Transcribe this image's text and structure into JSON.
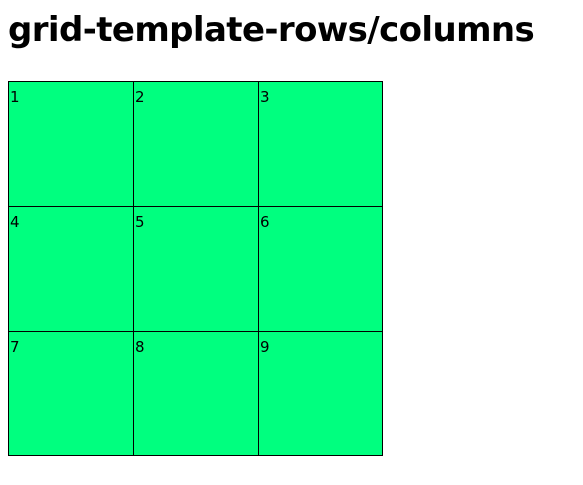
{
  "page": {
    "title": "grid-template-rows/columns"
  },
  "grid": {
    "item_color": "#00ff7f",
    "border_color": "#000000",
    "items": [
      {
        "label": "1"
      },
      {
        "label": "2"
      },
      {
        "label": "3"
      },
      {
        "label": "4"
      },
      {
        "label": "5"
      },
      {
        "label": "6"
      },
      {
        "label": "7"
      },
      {
        "label": "8"
      },
      {
        "label": "9"
      }
    ]
  }
}
